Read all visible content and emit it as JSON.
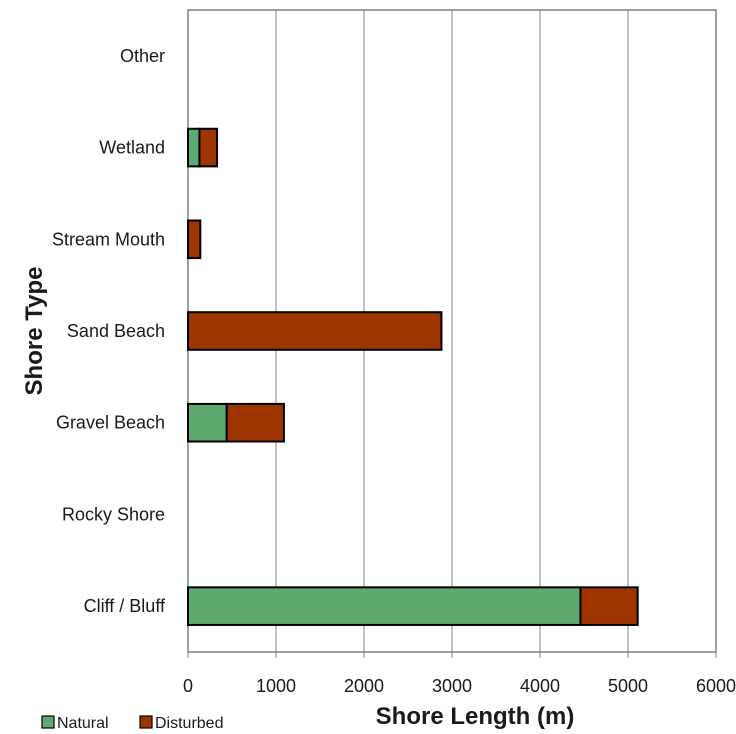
{
  "chart_data": {
    "type": "bar",
    "orientation": "horizontal",
    "stacked": true,
    "categories": [
      "Cliff / Bluff",
      "Rocky Shore",
      "Gravel Beach",
      "Sand Beach",
      "Stream Mouth",
      "Wetland",
      "Other"
    ],
    "series": [
      {
        "name": "Natural",
        "color": "#5fa870",
        "values": [
          4460,
          0,
          440,
          0,
          0,
          130,
          0
        ]
      },
      {
        "name": "Disturbed",
        "color": "#9e3400",
        "values": [
          650,
          0,
          650,
          2880,
          140,
          200,
          0
        ]
      }
    ],
    "xlabel": "Shore Length (m)",
    "ylabel": "Shore Type",
    "xlim": [
      0,
      6000
    ],
    "xticks": [
      "0",
      "1000",
      "2000",
      "3000",
      "4000",
      "5000",
      "6000"
    ],
    "grid": "vertical",
    "legend": "bottom-left"
  }
}
